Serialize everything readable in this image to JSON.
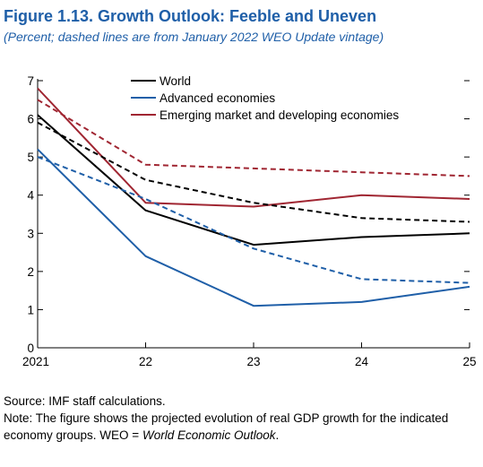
{
  "figure": {
    "title": "Figure 1.13.  Growth Outlook: Feeble and Uneven",
    "subtitle": "(Percent; dashed lines are from January 2022 WEO Update vintage)",
    "source": "Source: IMF staff calculations.",
    "note_prefix": "Note: The figure shows the projected evolution of real GDP growth for the indicated economy groups. WEO = ",
    "note_italic": "World Economic Outlook",
    "note_suffix": "."
  },
  "chart_data": {
    "type": "line",
    "title": "Growth Outlook: Feeble and Uneven",
    "x": [
      "2021",
      "22",
      "23",
      "24",
      "25"
    ],
    "ylim": [
      0,
      7
    ],
    "yticks": [
      0,
      1,
      2,
      3,
      4,
      5,
      6,
      7
    ],
    "ytick_labels": [
      "0",
      "1",
      "2",
      "3",
      "4",
      "5",
      "6",
      "7"
    ],
    "legend_position": "top-center",
    "series": [
      {
        "name": "World",
        "style": "solid",
        "color": "#000000",
        "values": [
          6.1,
          3.6,
          2.7,
          2.9,
          3.0
        ],
        "legend": true
      },
      {
        "name": "Advanced economies",
        "style": "solid",
        "color": "#1f5fa8",
        "values": [
          5.2,
          2.4,
          1.1,
          1.2,
          1.6
        ],
        "legend": true
      },
      {
        "name": "Emerging market and developing economies",
        "style": "solid",
        "color": "#a02632",
        "values": [
          6.8,
          3.8,
          3.7,
          4.0,
          3.9
        ],
        "legend": true
      },
      {
        "name": "World",
        "style": "dashed",
        "color": "#000000",
        "values": [
          5.9,
          4.4,
          3.8,
          3.4,
          3.3
        ],
        "legend": false
      },
      {
        "name": "Advanced economies",
        "style": "dashed",
        "color": "#1f5fa8",
        "values": [
          5.0,
          3.9,
          2.6,
          1.8,
          1.7
        ],
        "legend": false
      },
      {
        "name": "Emerging market and developing economies",
        "style": "dashed",
        "color": "#a02632",
        "values": [
          6.5,
          4.8,
          4.7,
          4.6,
          4.5
        ],
        "legend": false
      }
    ]
  }
}
